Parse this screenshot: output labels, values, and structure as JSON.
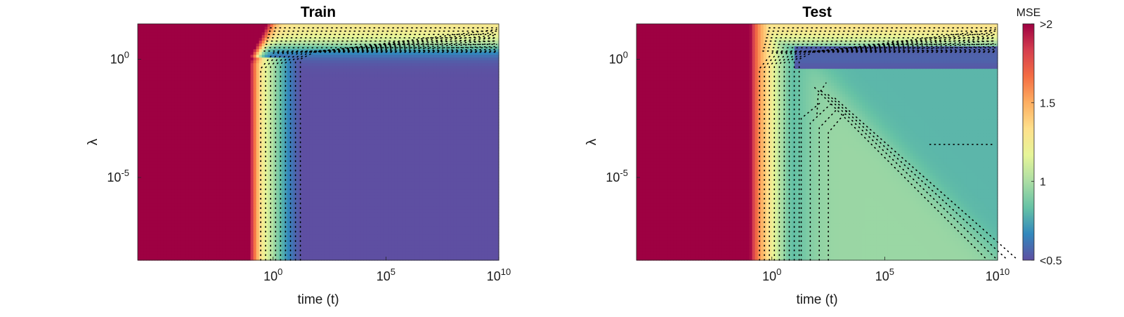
{
  "chart_data": [
    {
      "type": "heatmap",
      "title": "Train",
      "xlabel": "time (t)",
      "ylabel": "λ",
      "x_scale": "log",
      "y_scale": "log",
      "xlim_log10": [
        -6,
        10
      ],
      "ylim_log10": [
        -8.5,
        1.5
      ],
      "x_ticks": [
        {
          "base": "10",
          "exp": "0",
          "log10": 0
        },
        {
          "base": "10",
          "exp": "5",
          "log10": 5
        },
        {
          "base": "10",
          "exp": "10",
          "log10": 10
        }
      ],
      "y_ticks": [
        {
          "base": "10",
          "exp": "0",
          "log10": 0
        },
        {
          "base": "10",
          "exp": "-5",
          "log10": -5
        }
      ],
      "contour_style": "black dotted",
      "regions": [
        {
          "description": "MSE > 2 (saturated)",
          "t_max_log10": -0.8
        },
        {
          "description": "MSE ≈ 1.2 (underfit)",
          "lambda_min_log10": 0.7
        },
        {
          "description": "MSE < 0.5 (fit)",
          "t_min_log10": 1.2,
          "lambda_max_log10": -0.5
        }
      ]
    },
    {
      "type": "heatmap",
      "title": "Test",
      "xlabel": "time (t)",
      "ylabel": "λ",
      "x_scale": "log",
      "y_scale": "log",
      "xlim_log10": [
        -6,
        10
      ],
      "ylim_log10": [
        -8.5,
        1.5
      ],
      "x_ticks": [
        {
          "base": "10",
          "exp": "0",
          "log10": 0
        },
        {
          "base": "10",
          "exp": "5",
          "log10": 5
        },
        {
          "base": "10",
          "exp": "10",
          "log10": 10
        }
      ],
      "y_ticks": [
        {
          "base": "10",
          "exp": "0",
          "log10": 0
        },
        {
          "base": "10",
          "exp": "-5",
          "log10": -5
        }
      ],
      "contour_style": "black dotted",
      "regions": [
        {
          "description": "MSE > 2 (saturated)",
          "t_max_log10": -0.8
        },
        {
          "description": "MSE ≈ 1.2 (underfit)",
          "lambda_min_log10": 0.7
        },
        {
          "description": "MSE ≈ 0.55 (best generalization)",
          "lambda_range_log10": [
            -0.5,
            0.5
          ]
        },
        {
          "description": "MSE ≈ 0.8",
          "t_min_log10": 0.5,
          "lambda_max_log10": -0.5
        },
        {
          "description": "MSE ≈ 0.95 (overfit triangle)",
          "boundary": "log10 t + log10 λ ≤ 1.5"
        }
      ]
    }
  ],
  "colorbar": {
    "title": "MSE",
    "range": [
      0.5,
      2
    ],
    "ticks": [
      {
        "label": ">2",
        "value": 2
      },
      {
        "label": "1.5",
        "value": 1.5
      },
      {
        "label": "1",
        "value": 1
      },
      {
        "label": "<0.5",
        "value": 0.5
      }
    ],
    "colors": [
      "#5e4fa2",
      "#3288bd",
      "#66c2a5",
      "#abdda4",
      "#e6f598",
      "#fee08b",
      "#fdae61",
      "#f46d43",
      "#d53e4f",
      "#9e0142"
    ]
  }
}
